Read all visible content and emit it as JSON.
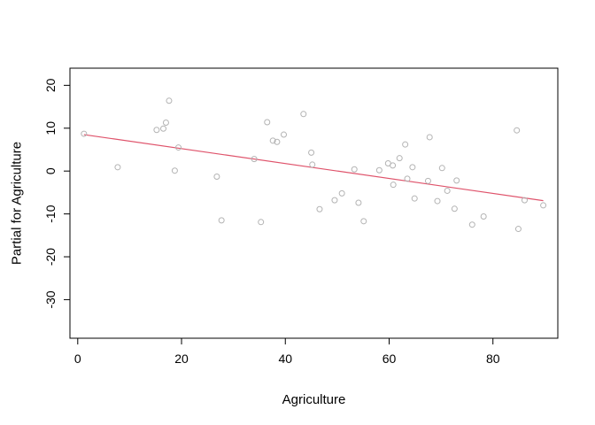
{
  "chart_data": {
    "type": "scatter",
    "title": "",
    "xlabel": "Agriculture",
    "ylabel": "Partial for Agriculture",
    "xlim": [
      -1.5,
      92.5
    ],
    "ylim": [
      -39,
      24
    ],
    "xticks": [
      0,
      20,
      40,
      60,
      80
    ],
    "yticks": [
      -30,
      -20,
      -10,
      0,
      10,
      20
    ],
    "grid": false,
    "point_color": "#b3b3b3",
    "line_color": "#df536b",
    "points": [
      {
        "x": 1.2,
        "y": 8.7
      },
      {
        "x": 7.7,
        "y": 0.9
      },
      {
        "x": 15.2,
        "y": 9.6
      },
      {
        "x": 16.5,
        "y": 9.9
      },
      {
        "x": 17.0,
        "y": 11.3
      },
      {
        "x": 17.6,
        "y": 16.4
      },
      {
        "x": 18.7,
        "y": 0.1
      },
      {
        "x": 19.4,
        "y": 5.5
      },
      {
        "x": 26.8,
        "y": -1.3
      },
      {
        "x": 27.7,
        "y": -11.5
      },
      {
        "x": 34.0,
        "y": 2.8
      },
      {
        "x": 35.3,
        "y": -11.9
      },
      {
        "x": 36.5,
        "y": 11.4
      },
      {
        "x": 37.6,
        "y": 7.1
      },
      {
        "x": 38.4,
        "y": 6.8
      },
      {
        "x": 39.7,
        "y": 8.5
      },
      {
        "x": 43.5,
        "y": 13.3
      },
      {
        "x": 45.0,
        "y": 4.3
      },
      {
        "x": 45.2,
        "y": 1.5
      },
      {
        "x": 46.6,
        "y": -8.9
      },
      {
        "x": 49.5,
        "y": -6.8
      },
      {
        "x": 50.9,
        "y": -5.2
      },
      {
        "x": 53.3,
        "y": 0.4
      },
      {
        "x": 54.1,
        "y": -7.4
      },
      {
        "x": 55.1,
        "y": -11.7
      },
      {
        "x": 58.1,
        "y": 0.2
      },
      {
        "x": 59.8,
        "y": 1.8
      },
      {
        "x": 60.7,
        "y": 1.3
      },
      {
        "x": 60.8,
        "y": -3.2
      },
      {
        "x": 62.0,
        "y": 3.0
      },
      {
        "x": 63.1,
        "y": 6.2
      },
      {
        "x": 63.5,
        "y": -1.8
      },
      {
        "x": 64.5,
        "y": 0.9
      },
      {
        "x": 64.9,
        "y": -6.4
      },
      {
        "x": 67.5,
        "y": -2.3
      },
      {
        "x": 67.8,
        "y": 7.9
      },
      {
        "x": 69.3,
        "y": -7.0
      },
      {
        "x": 70.2,
        "y": 0.7
      },
      {
        "x": 71.2,
        "y": -4.6
      },
      {
        "x": 72.6,
        "y": -8.8
      },
      {
        "x": 73.0,
        "y": -2.2
      },
      {
        "x": 76.0,
        "y": -12.5
      },
      {
        "x": 78.2,
        "y": -10.6
      },
      {
        "x": 84.6,
        "y": 9.5
      },
      {
        "x": 84.9,
        "y": -13.5
      },
      {
        "x": 86.1,
        "y": -6.8
      },
      {
        "x": 89.7,
        "y": -8.0
      }
    ],
    "fit_line": [
      {
        "x": 1.2,
        "y": 8.5
      },
      {
        "x": 89.7,
        "y": -6.9
      }
    ]
  }
}
